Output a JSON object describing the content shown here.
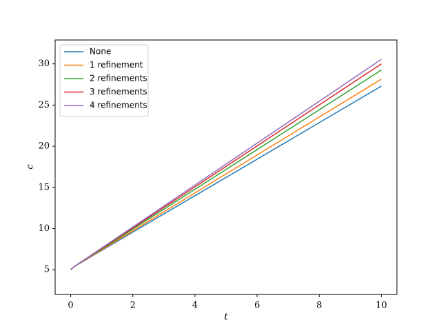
{
  "chart_data": {
    "type": "line",
    "x_label": "t",
    "y_label": "c",
    "x": [
      0,
      0.1,
      0.3,
      1,
      2,
      4,
      6,
      8,
      10
    ],
    "series": [
      {
        "name": "None",
        "color": "#1f77b4",
        "values": [
          5,
          5.35,
          5.79,
          7.35,
          9.57,
          13.99,
          18.42,
          22.86,
          27.3
        ]
      },
      {
        "name": "1 refinement",
        "color": "#ff7f0e",
        "values": [
          5,
          5.35,
          5.81,
          7.42,
          9.73,
          14.33,
          18.94,
          23.54,
          28.15
        ]
      },
      {
        "name": "2 refinements",
        "color": "#2ca02c",
        "values": [
          5,
          5.35,
          5.83,
          7.52,
          9.94,
          14.77,
          19.59,
          24.42,
          29.25
        ]
      },
      {
        "name": "3 refinements",
        "color": "#d62728",
        "values": [
          5,
          5.35,
          5.85,
          7.59,
          10.08,
          15.06,
          20.04,
          25.02,
          30.0
        ]
      },
      {
        "name": "4 refinements",
        "color": "#9467bd",
        "values": [
          5,
          5.35,
          5.86,
          7.64,
          10.19,
          15.28,
          20.37,
          25.46,
          30.55
        ]
      }
    ],
    "xlim": [
      -0.5,
      10.5
    ],
    "xticks": [
      0,
      2,
      4,
      6,
      8,
      10
    ],
    "ylim": [
      2,
      32.9
    ],
    "yticks": [
      5,
      10,
      15,
      20,
      25,
      30
    ],
    "grid": false,
    "legend": "upper-left"
  }
}
